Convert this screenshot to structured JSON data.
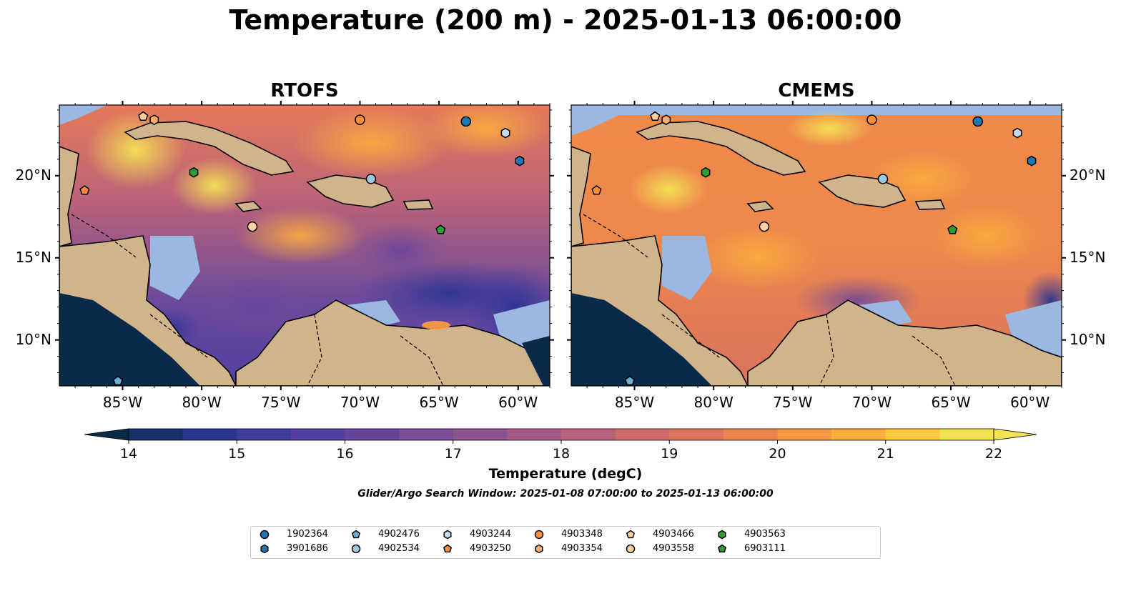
{
  "title": "Temperature (200 m) - 2025-01-13 06:00:00",
  "panels": [
    {
      "title": "RTOFS",
      "gradient": "rtofs"
    },
    {
      "title": "CMEMS",
      "gradient": "cmems"
    }
  ],
  "axes": {
    "lon_ticks": [
      "85°W",
      "80°W",
      "75°W",
      "70°W",
      "65°W",
      "60°W"
    ],
    "lat_ticks": [
      "20°N",
      "15°N",
      "10°N"
    ]
  },
  "colorbar": {
    "label": "Temperature (degC)",
    "min": 14,
    "max": 22,
    "step": 0.5,
    "ticks": [
      "14",
      "15",
      "16",
      "17",
      "18",
      "19",
      "20",
      "21",
      "22"
    ],
    "colors": [
      "#0a2a4a",
      "#172f6a",
      "#2a3590",
      "#3f3a9e",
      "#533ea0",
      "#66449e",
      "#7a4c98",
      "#8e5290",
      "#a35a86",
      "#b9627a",
      "#cd6b6c",
      "#de755e",
      "#ec8450",
      "#f69744",
      "#fbae3d",
      "#fbc83e",
      "#f3e354"
    ]
  },
  "search_window": "Glider/Argo Search Window: 2025-01-08 07:00:00 to 2025-01-13 06:00:00",
  "map_colors": {
    "land": "#d2b48c",
    "shelf": "#9ab8e2",
    "coast": "#000000",
    "river": "#9ab8e2"
  },
  "legend": [
    {
      "id": "1902364",
      "marker": "circle",
      "color": "#1f77b4"
    },
    {
      "id": "3901686",
      "marker": "hexagon",
      "color": "#1f77b4"
    },
    {
      "id": "4902476",
      "marker": "pentagon",
      "color": "#6baed6"
    },
    {
      "id": "4902534",
      "marker": "circle",
      "color": "#9ecae1"
    },
    {
      "id": "4903244",
      "marker": "hexagon",
      "color": "#c6dbef"
    },
    {
      "id": "4903250",
      "marker": "pentagon",
      "color": "#fd8d3c"
    },
    {
      "id": "4903348",
      "marker": "circle",
      "color": "#fd8d3c"
    },
    {
      "id": "4903354",
      "marker": "hexagon",
      "color": "#fdae6b"
    },
    {
      "id": "4903466",
      "marker": "pentagon",
      "color": "#fdd0a2"
    },
    {
      "id": "4903558",
      "marker": "circle",
      "color": "#fdd0a2"
    },
    {
      "id": "4903563",
      "marker": "hexagon",
      "color": "#2ca02c"
    },
    {
      "id": "6903111",
      "marker": "pentagon",
      "color": "#2ca02c"
    }
  ],
  "floats": [
    {
      "id": "1902364",
      "lon": -63.3,
      "lat": 23.3
    },
    {
      "id": "3901686",
      "lon": -59.9,
      "lat": 20.9
    },
    {
      "id": "4902476",
      "lon": -85.3,
      "lat": 7.5
    },
    {
      "id": "4902534",
      "lon": -69.3,
      "lat": 19.8
    },
    {
      "id": "4903244",
      "lon": -60.8,
      "lat": 22.6
    },
    {
      "id": "4903250",
      "lon": -87.4,
      "lat": 19.1
    },
    {
      "id": "4903348",
      "lon": -70.0,
      "lat": 23.4
    },
    {
      "id": "4903354",
      "lon": -83.0,
      "lat": 23.4
    },
    {
      "id": "4903466",
      "lon": -83.7,
      "lat": 23.6
    },
    {
      "id": "4903558",
      "lon": -76.8,
      "lat": 16.9
    },
    {
      "id": "4903563",
      "lon": -80.5,
      "lat": 20.2
    },
    {
      "id": "6903111",
      "lon": -64.9,
      "lat": 16.7
    }
  ]
}
